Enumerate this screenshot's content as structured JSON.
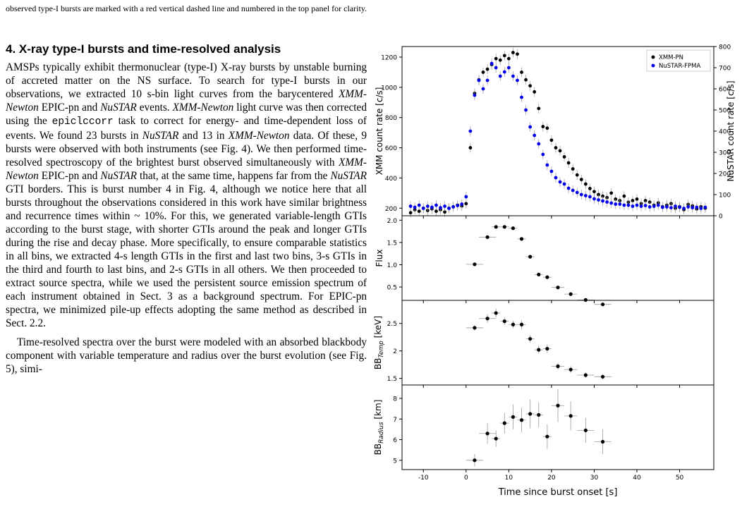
{
  "caption_tail": "observed type-I bursts are marked with a red vertical dashed line and numbered in the top panel for clarity.",
  "section": {
    "number": "4.",
    "title": "X-ray type-I bursts and time-resolved analysis"
  },
  "paragraph1": [
    {
      "t": "AMSPs typically exhibit thermonuclear (type-I) X-ray bursts by unstable burning of accreted matter on the NS surface. To search for type-I bursts in our observations, we extracted 10 s-bin light curves from the barycentered "
    },
    {
      "t": "XMM-Newton",
      "i": true
    },
    {
      "t": " EPIC-pn and "
    },
    {
      "t": "NuSTAR",
      "i": true
    },
    {
      "t": " events. "
    },
    {
      "t": "XMM-Newton",
      "i": true
    },
    {
      "t": " light curve was then corrected using the "
    },
    {
      "t": "epiclccorr",
      "m": true
    },
    {
      "t": " task to correct for energy- and time-dependent loss of events. We found 23 bursts in "
    },
    {
      "t": "NuSTAR",
      "i": true
    },
    {
      "t": " and 13 in "
    },
    {
      "t": "XMM-Newton",
      "i": true
    },
    {
      "t": " data. Of these, 9 bursts were observed with both instruments (see Fig. 4). We then performed time-resolved spectroscopy of the brightest burst observed simultaneously with "
    },
    {
      "t": "XMM-Newton",
      "i": true
    },
    {
      "t": " EPIC-pn and "
    },
    {
      "t": "NuSTAR",
      "i": true
    },
    {
      "t": " that, at the same time, happens far from the "
    },
    {
      "t": "NuSTAR",
      "i": true
    },
    {
      "t": " GTI borders. This is burst number 4 in Fig. 4, although we notice here that all bursts throughout the observations considered in this work have similar brightness and recurrence times within ~ 10%. For this, we generated variable-length GTIs according to the burst stage, with shorter GTIs around the peak and longer GTIs during the rise and decay phase. More specifically, to ensure comparable statistics in all bins, we extracted 4-s length GTIs in the first and last two bins, 3-s GTIs in the third and fourth to last bins, and 2-s GTIs in all others. We then proceeded to extract source spectra, while we used the persistent source emission spectrum of each instrument obtained in Sect. 3 as a background spectrum. For EPIC-pn spectra, we minimized pile-up effects adopting the same method as described in Sect. 2.2."
    }
  ],
  "paragraph2": "Time-resolved spectra over the burst were modeled with an absorbed blackbody component with variable temperature and radius over the burst evolution (see Fig. 5), simi-",
  "figure": {
    "chart_data": [
      {
        "type": "scatter",
        "panel": "light-curve",
        "xlim": [
          -15,
          58
        ],
        "ylim": [
          150,
          1270
        ],
        "ylim_right": [
          0,
          800
        ],
        "ylabel": "XMM count rate [c/s]",
        "ylabel_right": "NuSTAR count rate [c/s]",
        "yticks": [
          200,
          400,
          600,
          800,
          1000,
          1200
        ],
        "yticks_right": [
          0,
          100,
          200,
          300,
          400,
          500,
          600,
          700,
          800
        ],
        "legend_position": "top-right",
        "series": [
          {
            "name": "XMM-PN",
            "color": "#000000",
            "axis": "left",
            "x": [
              -13,
              -12,
              -11,
              -10,
              -9,
              -8,
              -7,
              -6,
              -5,
              -4,
              -3,
              -2,
              -1,
              0,
              1,
              2,
              3,
              4,
              5,
              6,
              7,
              8,
              9,
              10,
              11,
              12,
              13,
              14,
              15,
              16,
              17,
              18,
              19,
              20,
              21,
              22,
              23,
              24,
              25,
              26,
              27,
              28,
              29,
              30,
              31,
              32,
              33,
              34,
              35,
              36,
              37,
              38,
              39,
              40,
              41,
              42,
              43,
              44,
              45,
              46,
              47,
              48,
              49,
              50,
              51,
              52,
              53,
              54,
              55,
              56
            ],
            "y": [
              170,
              190,
              180,
              200,
              185,
              195,
              180,
              190,
              175,
              200,
              210,
              220,
              215,
              230,
              600,
              960,
              1050,
              1100,
              1120,
              1150,
              1190,
              1180,
              1210,
              1190,
              1230,
              1220,
              1100,
              1050,
              1010,
              970,
              860,
              740,
              730,
              650,
              600,
              580,
              540,
              500,
              460,
              420,
              390,
              360,
              330,
              310,
              290,
              280,
              270,
              300,
              260,
              250,
              280,
              240,
              250,
              260,
              230,
              250,
              240,
              220,
              235,
              210,
              220,
              230,
              200,
              210,
              190,
              225,
              215,
              195,
              210,
              200
            ]
          },
          {
            "name": "NuSTAR-FPMA",
            "color": "#0000ee",
            "axis": "right",
            "x": [
              -13,
              -12,
              -11,
              -10,
              -9,
              -8,
              -7,
              -6,
              -5,
              -4,
              -3,
              -2,
              -1,
              0,
              1,
              2,
              3,
              4,
              5,
              6,
              7,
              8,
              9,
              10,
              11,
              12,
              13,
              14,
              15,
              16,
              17,
              18,
              19,
              20,
              21,
              22,
              23,
              24,
              25,
              26,
              27,
              28,
              29,
              30,
              31,
              32,
              33,
              34,
              35,
              36,
              37,
              38,
              39,
              40,
              41,
              42,
              43,
              44,
              45,
              46,
              47,
              48,
              49,
              50,
              51,
              52,
              53,
              54,
              55,
              56
            ],
            "y": [
              45,
              40,
              50,
              35,
              45,
              40,
              50,
              38,
              45,
              35,
              42,
              48,
              55,
              90,
              400,
              570,
              640,
              600,
              640,
              720,
              700,
              660,
              680,
              700,
              660,
              640,
              560,
              500,
              420,
              380,
              340,
              290,
              240,
              210,
              180,
              160,
              150,
              130,
              120,
              110,
              100,
              95,
              90,
              80,
              75,
              70,
              65,
              60,
              55,
              55,
              50,
              50,
              45,
              50,
              45,
              48,
              42,
              45,
              50,
              40,
              42,
              38,
              45,
              40,
              35,
              42,
              38,
              40,
              35,
              40
            ]
          }
        ]
      },
      {
        "type": "scatter",
        "panel": "flux",
        "ylabel": "Flux",
        "xlim": [
          -15,
          58
        ],
        "ylim": [
          0.2,
          2.1
        ],
        "yticks": [
          0.5,
          1.0,
          1.5,
          2.0
        ],
        "x": [
          2,
          5,
          7,
          9,
          11,
          13,
          15,
          17,
          19,
          21.5,
          24.5,
          28,
          32
        ],
        "y": [
          1.01,
          1.62,
          1.85,
          1.85,
          1.82,
          1.58,
          1.18,
          0.78,
          0.72,
          0.49,
          0.34,
          0.21,
          0.11
        ]
      },
      {
        "type": "scatter",
        "panel": "bb-temperature",
        "ylabel": "BB",
        "ylabel_sub": "Temp",
        "ylabel_unit": " [keV]",
        "xlim": [
          -15,
          58
        ],
        "ylim": [
          1.38,
          2.92
        ],
        "yticks": [
          1.5,
          2.0,
          2.5
        ],
        "x": [
          2,
          5,
          7,
          9,
          11,
          13,
          15,
          17,
          19,
          21.5,
          24.5,
          28,
          32
        ],
        "y": [
          2.42,
          2.59,
          2.69,
          2.54,
          2.48,
          2.48,
          2.22,
          2.02,
          2.04,
          1.72,
          1.66,
          1.56,
          1.53
        ],
        "yerr": [
          0.05,
          0.08,
          0.08,
          0.07,
          0.07,
          0.08,
          0.07,
          0.07,
          0.08,
          0.06,
          0.06,
          0.05,
          0.05
        ]
      },
      {
        "type": "scatter",
        "panel": "bb-radius",
        "ylabel": "BB",
        "ylabel_sub": "Radius",
        "ylabel_unit": " [km]",
        "xlabel": "Time since burst onset [s]",
        "xlim": [
          -15,
          58
        ],
        "ylim": [
          4.55,
          8.65
        ],
        "yticks": [
          5,
          6,
          7,
          8
        ],
        "xticks": [
          -10,
          0,
          10,
          20,
          30,
          40,
          50
        ],
        "x": [
          2,
          5,
          7,
          9,
          11,
          13,
          15,
          17,
          19,
          21.5,
          24.5,
          28,
          32
        ],
        "y": [
          5.0,
          6.3,
          6.05,
          6.8,
          7.1,
          6.95,
          7.25,
          7.2,
          6.15,
          7.65,
          7.15,
          6.45,
          5.9
        ],
        "yerr": [
          0.3,
          0.5,
          0.4,
          0.5,
          0.6,
          0.6,
          0.7,
          0.6,
          0.6,
          0.8,
          0.7,
          0.6,
          0.6
        ]
      }
    ]
  }
}
